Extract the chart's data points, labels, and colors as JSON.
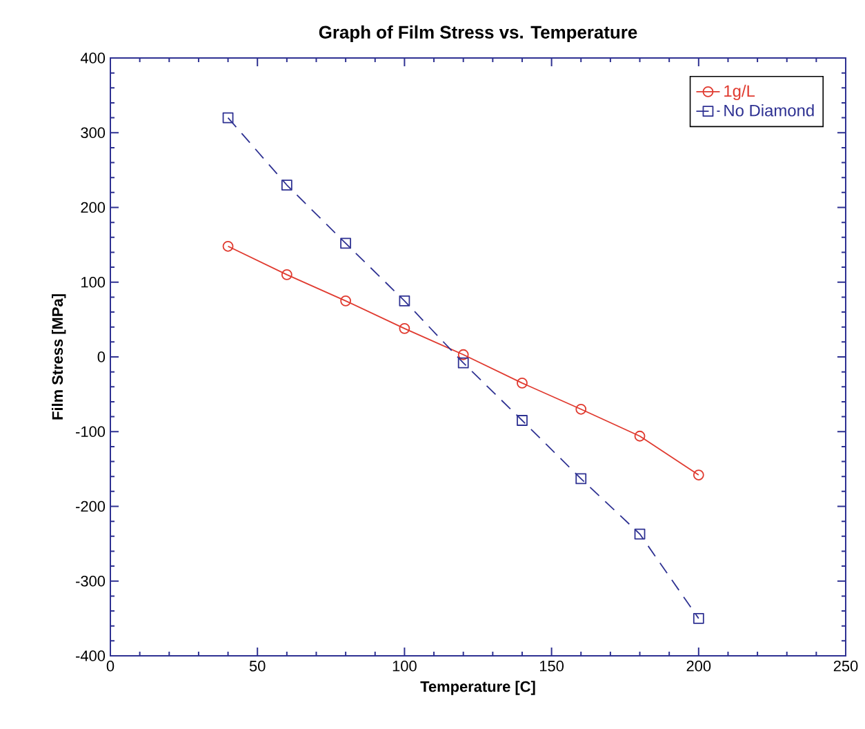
{
  "chart_data": {
    "type": "line",
    "title": "Graph of Film Stress vs. Temperature",
    "xlabel": "Temperature [C]",
    "ylabel": "Film Stress [MPa]",
    "x": [
      40,
      60,
      80,
      100,
      120,
      140,
      160,
      180,
      200
    ],
    "series": [
      {
        "name": "1g/L",
        "color": "#e03a2f",
        "marker": "circle",
        "line_style": "solid",
        "values": [
          148,
          110,
          75,
          38,
          3,
          -35,
          -70,
          -106,
          -158
        ]
      },
      {
        "name": "No Diamond",
        "color": "#2e3192",
        "marker": "square",
        "line_style": "dashed",
        "values": [
          320,
          230,
          152,
          75,
          -8,
          -85,
          -163,
          -237,
          -350
        ]
      }
    ],
    "xlim": [
      0,
      250
    ],
    "xticks": [
      0,
      50,
      100,
      150,
      200,
      250
    ],
    "ylim": [
      -400,
      400
    ],
    "yticks": [
      -400,
      -300,
      -200,
      -100,
      0,
      100,
      200,
      300,
      400
    ],
    "grid": false,
    "legend": "top right"
  }
}
